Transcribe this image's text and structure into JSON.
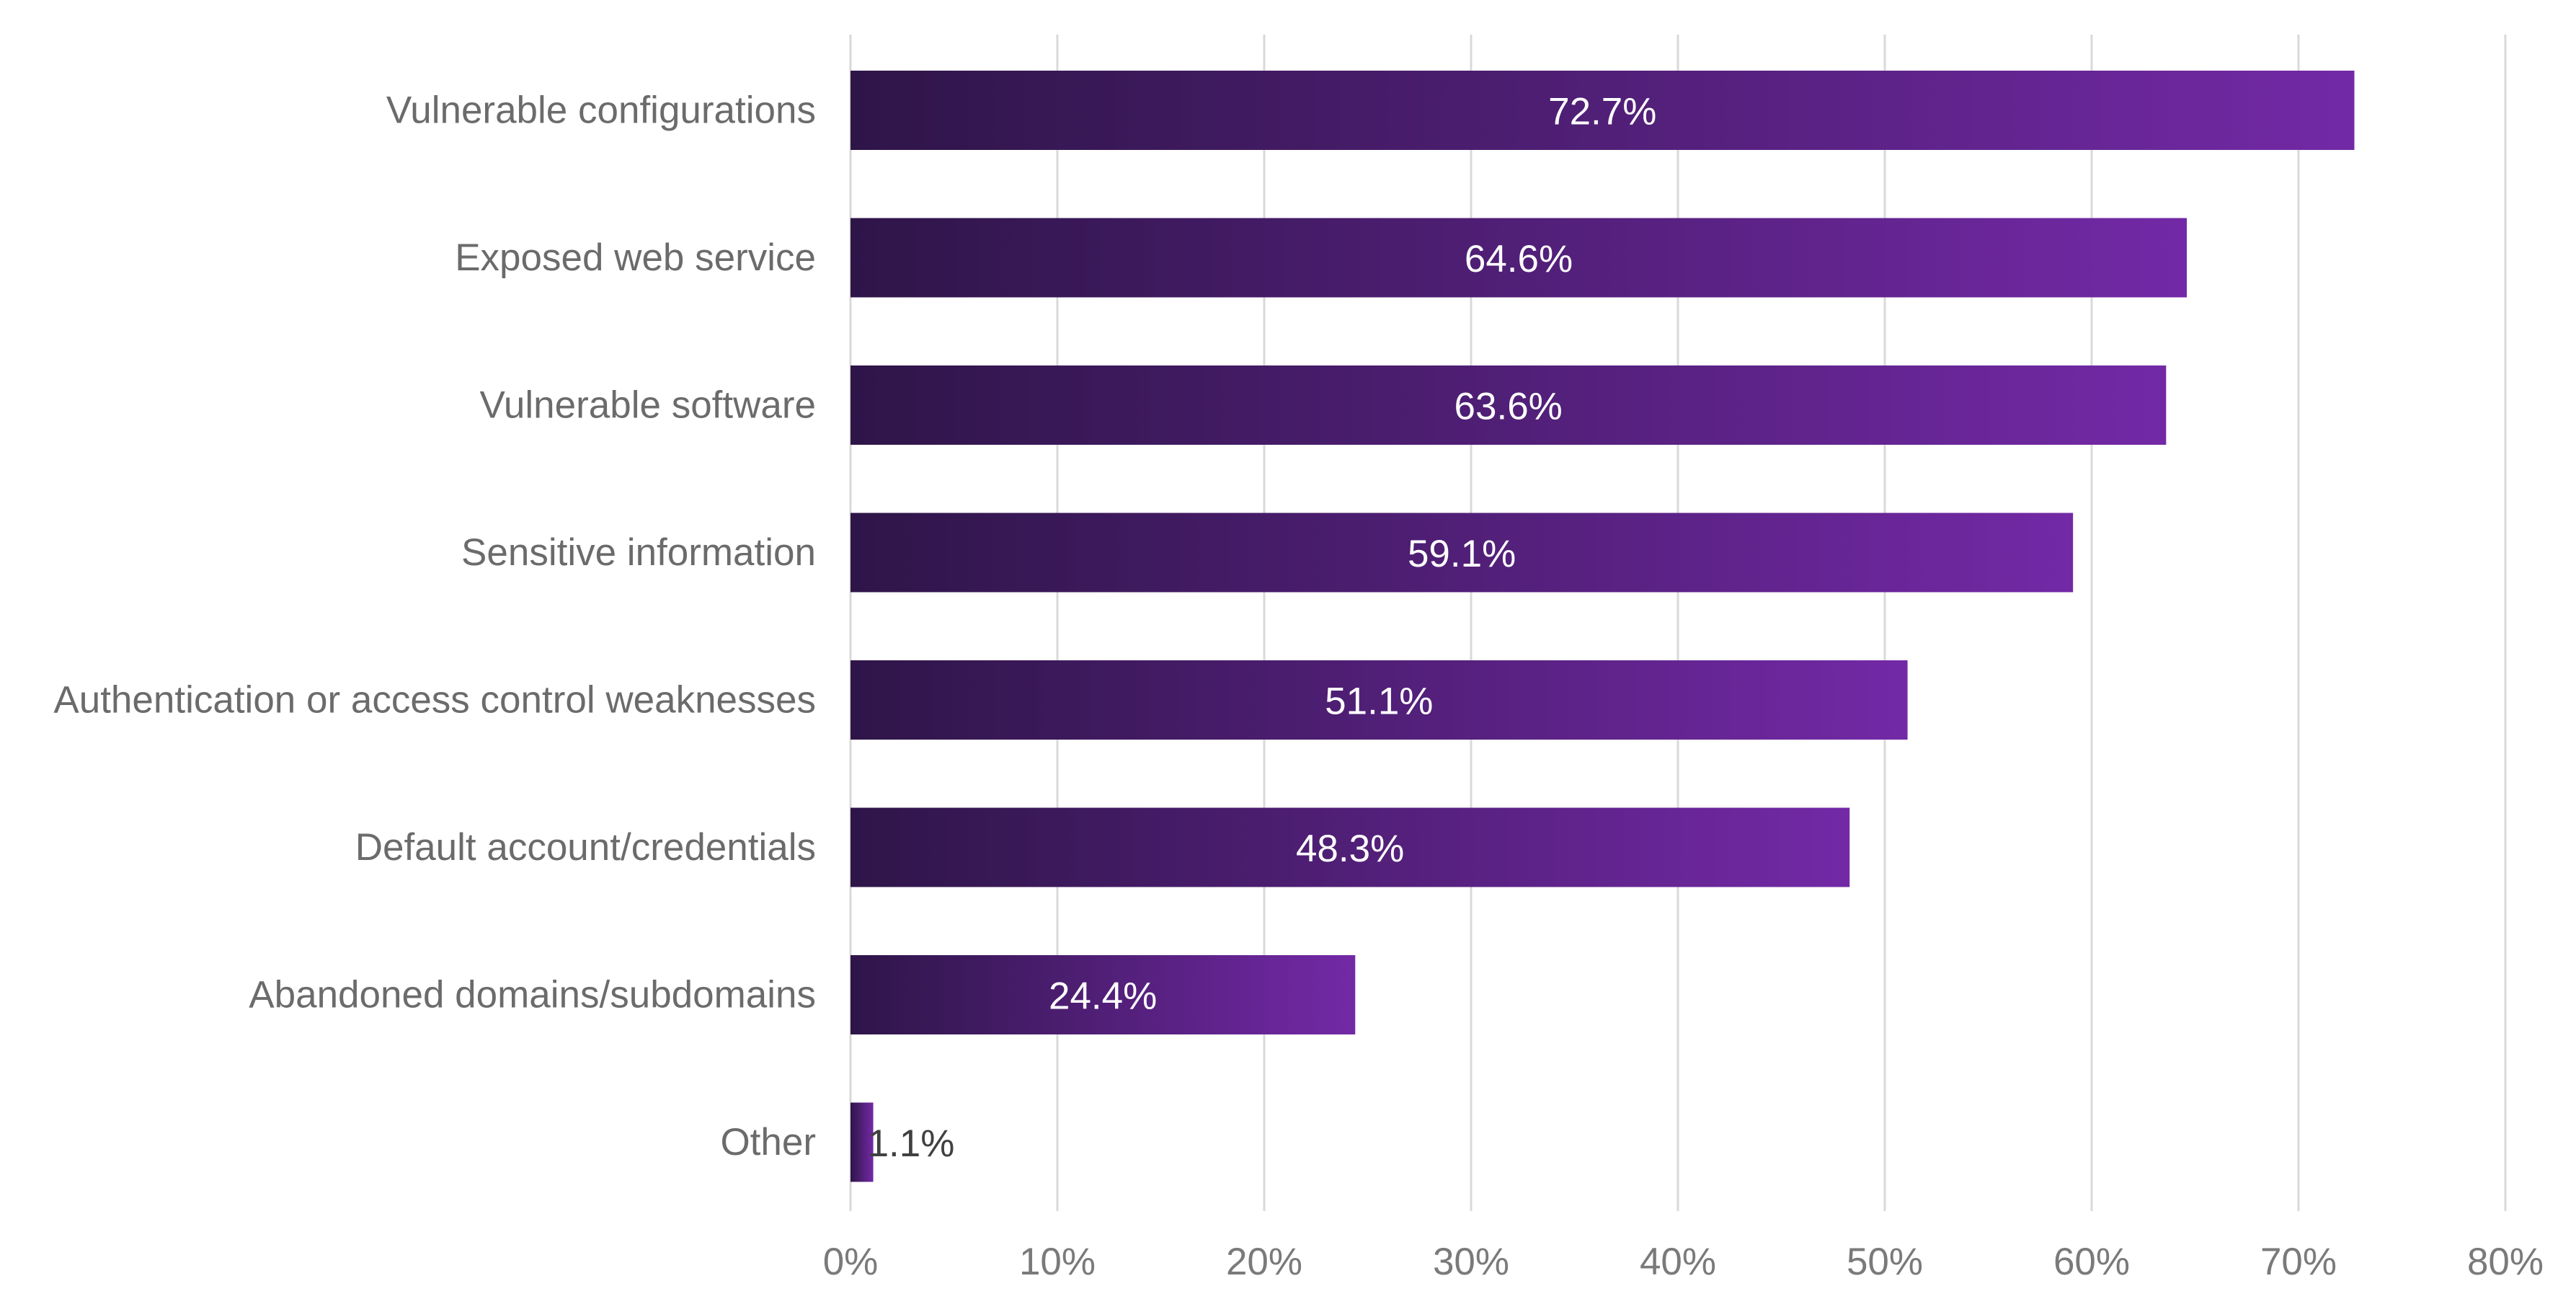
{
  "chart_data": {
    "type": "bar",
    "orientation": "horizontal",
    "title": "",
    "xlabel": "",
    "ylabel": "",
    "categories": [
      "Vulnerable configurations",
      "Exposed web service",
      "Vulnerable software",
      "Sensitive information",
      "Authentication or access control weaknesses",
      "Default account/credentials",
      "Abandoned domains/subdomains",
      "Other"
    ],
    "values": [
      72.7,
      64.6,
      63.6,
      59.1,
      51.1,
      48.3,
      24.4,
      1.1
    ],
    "value_labels": [
      "72.7%",
      "64.6%",
      "63.6%",
      "59.1%",
      "51.1%",
      "48.3%",
      "24.4%",
      "1.1%"
    ],
    "xlim": [
      0,
      80
    ],
    "x_ticks": [
      0,
      10,
      20,
      30,
      40,
      50,
      60,
      70,
      80
    ],
    "x_tick_labels": [
      "0%",
      "10%",
      "20%",
      "30%",
      "40%",
      "50%",
      "60%",
      "70%",
      "80%"
    ],
    "grid": "vertical",
    "legend": "none",
    "colors": {
      "bar_start": "#2e1548",
      "bar_end": "#7329a6",
      "label_inside": "#ffffff",
      "label_outside": "#404040",
      "gridline": "#d9d9d9",
      "category_text": "#6b6b6b",
      "tick_text": "#7a7a7a"
    }
  }
}
